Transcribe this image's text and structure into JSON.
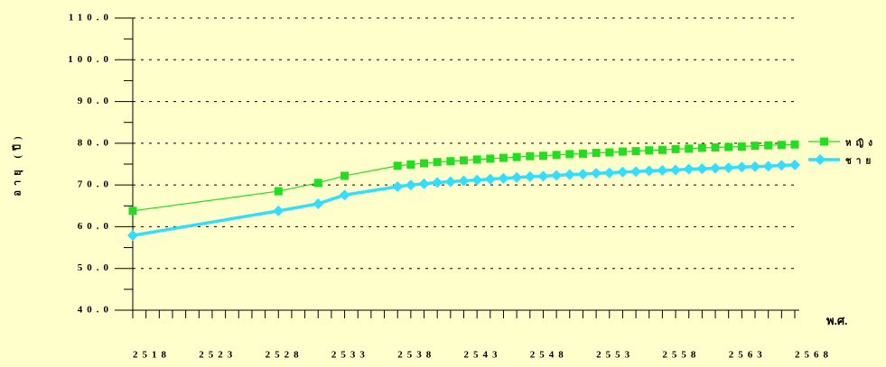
{
  "chart_data": {
    "type": "line",
    "y_label": "อายุ (ปี)",
    "x_label": "พ.ศ.",
    "x": [
      2518,
      2529,
      2532,
      2534,
      2538,
      2539,
      2540,
      2541,
      2542,
      2543,
      2544,
      2545,
      2546,
      2547,
      2548,
      2549,
      2550,
      2551,
      2552,
      2553,
      2554,
      2555,
      2556,
      2557,
      2558,
      2559,
      2560,
      2561,
      2562,
      2563,
      2564,
      2565,
      2566,
      2567,
      2568
    ],
    "series": [
      {
        "name": "หญิง",
        "color": "#22dd22",
        "marker": "square",
        "values": [
          63.8,
          68.5,
          70.5,
          72.2,
          74.6,
          74.9,
          75.2,
          75.5,
          75.7,
          75.9,
          76.1,
          76.3,
          76.5,
          76.7,
          76.9,
          77.0,
          77.2,
          77.4,
          77.5,
          77.7,
          77.8,
          78.0,
          78.1,
          78.3,
          78.4,
          78.6,
          78.7,
          78.9,
          79.0,
          79.1,
          79.2,
          79.4,
          79.5,
          79.6,
          79.7
        ]
      },
      {
        "name": "ชาย",
        "color": "#33ddff",
        "marker": "diamond",
        "values": [
          57.9,
          63.8,
          65.5,
          67.6,
          69.6,
          70.0,
          70.3,
          70.6,
          70.8,
          71.0,
          71.2,
          71.4,
          71.6,
          71.8,
          72.0,
          72.1,
          72.3,
          72.5,
          72.6,
          72.8,
          72.9,
          73.1,
          73.2,
          73.4,
          73.5,
          73.6,
          73.8,
          73.9,
          74.0,
          74.1,
          74.3,
          74.4,
          74.5,
          74.7,
          74.8
        ]
      }
    ],
    "xlim": [
      2518,
      2568
    ],
    "xticks": [
      2518,
      2523,
      2528,
      2533,
      2538,
      2543,
      2548,
      2553,
      2558,
      2563,
      2568
    ],
    "xminor_ticks": [
      2518,
      2519,
      2520,
      2521,
      2522,
      2523,
      2524,
      2525,
      2526,
      2527,
      2528,
      2529,
      2530,
      2531,
      2532,
      2533,
      2534,
      2535,
      2536,
      2537,
      2538,
      2539,
      2540,
      2541,
      2542,
      2543,
      2544,
      2545,
      2546,
      2547,
      2548,
      2549,
      2550,
      2551,
      2552,
      2553,
      2554,
      2555,
      2556,
      2557,
      2558,
      2559,
      2560,
      2561,
      2562,
      2563,
      2564,
      2565,
      2566,
      2567,
      2568
    ],
    "ylim": [
      40,
      110
    ],
    "yticks": [
      {
        "value": 40,
        "label": "40.0"
      },
      {
        "value": 50,
        "label": "50.0"
      },
      {
        "value": 60,
        "label": "60.0"
      },
      {
        "value": 70,
        "label": "70.0"
      },
      {
        "value": 80,
        "label": "80.0"
      },
      {
        "value": 90,
        "label": "90.0"
      },
      {
        "value": 100,
        "label": "100.0"
      },
      {
        "value": 110,
        "label": "110.0"
      }
    ],
    "yminor_ticks": [
      45,
      55,
      65,
      75,
      85,
      95,
      105
    ],
    "grid": true,
    "legend": "right"
  }
}
